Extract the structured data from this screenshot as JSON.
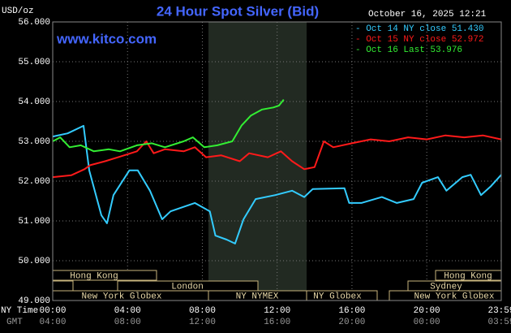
{
  "chart_data": {
    "type": "line",
    "title": "24 Hour Spot Silver (Bid)",
    "timestamp": "October 16, 2025 12:21",
    "watermark": "www.kitco.com",
    "y_label": "USD/oz",
    "x_label": "NY Time",
    "x2_label": "GMT",
    "xlim": [
      0,
      23.983
    ],
    "xticks": [
      {
        "value": 0,
        "label": "00:00"
      },
      {
        "value": 4,
        "label": "04:00"
      },
      {
        "value": 8,
        "label": "08:00"
      },
      {
        "value": 12,
        "label": "12:00"
      },
      {
        "value": 16,
        "label": "16:00"
      },
      {
        "value": 20,
        "label": "20:00"
      },
      {
        "value": 23.983,
        "label": "23:59"
      }
    ],
    "x2ticks": [
      {
        "value": 0,
        "label": "04:00"
      },
      {
        "value": 4,
        "label": "08:00"
      },
      {
        "value": 8,
        "label": "12:00"
      },
      {
        "value": 12,
        "label": "16:00"
      },
      {
        "value": 16,
        "label": "20:00"
      },
      {
        "value": 20,
        "label": "00:00"
      },
      {
        "value": 23.983,
        "label": "03:59"
      }
    ],
    "ylim": [
      49,
      56
    ],
    "yticks": [
      {
        "value": 49,
        "label": "49.000"
      },
      {
        "value": 50,
        "label": "50.000"
      },
      {
        "value": 51,
        "label": "51.000"
      },
      {
        "value": 52,
        "label": "52.000"
      },
      {
        "value": 53,
        "label": "53.000"
      },
      {
        "value": 54,
        "label": "54.000"
      },
      {
        "value": 55,
        "label": "55.000"
      },
      {
        "value": 56,
        "label": "56.000"
      }
    ],
    "grid": true,
    "sessions": [
      "Hong Kong",
      "London",
      "New York Globex",
      "NY NYMEX",
      "NY Globex",
      "Hong Kong",
      "Sydney",
      "New York Globex"
    ],
    "series": [
      {
        "name": "Oct 14 NY close 51.430",
        "color": "#33ccff",
        "x": [
          0,
          0.8,
          1.65,
          1.95,
          2.6,
          2.9,
          3.25,
          4.1,
          4.55,
          5.2,
          5.85,
          6.3,
          7.6,
          8.4,
          8.7,
          9.3,
          9.75,
          10.2,
          10.85,
          11.9,
          12.8,
          13.45,
          13.9,
          15.6,
          15.85,
          16.5,
          17.6,
          18.4,
          19.3,
          19.75,
          20.6,
          21.05,
          21.9,
          22.35,
          22.9,
          23.4,
          23.983
        ],
        "values": [
          53.12,
          53.2,
          53.39,
          52.27,
          51.14,
          50.94,
          51.65,
          52.27,
          52.27,
          51.76,
          51.04,
          51.24,
          51.45,
          51.24,
          50.63,
          50.53,
          50.43,
          51.04,
          51.55,
          51.65,
          51.76,
          51.6,
          51.8,
          51.82,
          51.45,
          51.45,
          51.6,
          51.45,
          51.55,
          51.96,
          52.1,
          51.76,
          52.1,
          52.16,
          51.65,
          51.86,
          52.16
        ]
      },
      {
        "name": "Oct 15 NY close 52.972",
        "color": "#ff1a1a",
        "x": [
          0,
          1,
          1.7,
          2,
          2.8,
          3.5,
          4.5,
          5,
          5.4,
          6,
          7,
          7.6,
          8.2,
          9,
          10,
          10.5,
          11.5,
          12.2,
          12.8,
          13.45,
          14,
          14.5,
          15,
          16,
          17,
          18,
          19,
          20,
          21,
          22,
          23,
          23.983
        ],
        "values": [
          52.1,
          52.15,
          52.3,
          52.4,
          52.5,
          52.6,
          52.75,
          53.0,
          52.7,
          52.8,
          52.75,
          52.85,
          52.6,
          52.65,
          52.5,
          52.7,
          52.6,
          52.75,
          52.5,
          52.3,
          52.35,
          53.0,
          52.85,
          52.95,
          53.05,
          53.0,
          53.1,
          53.05,
          53.15,
          53.1,
          53.15,
          53.05
        ]
      },
      {
        "name": "Oct 16 Last 53.976",
        "color": "#33ee33",
        "x": [
          0,
          0.4,
          0.9,
          1.5,
          2.2,
          3,
          3.6,
          4.5,
          5.3,
          6,
          7,
          7.5,
          8.1,
          8.8,
          9.6,
          10.1,
          10.6,
          11.2,
          11.8,
          12.1,
          12.35
        ],
        "values": [
          53.0,
          53.1,
          52.85,
          52.9,
          52.75,
          52.8,
          52.75,
          52.9,
          52.95,
          52.85,
          53.0,
          53.1,
          52.85,
          52.9,
          53.0,
          53.4,
          53.65,
          53.8,
          53.85,
          53.9,
          54.05
        ]
      }
    ]
  }
}
